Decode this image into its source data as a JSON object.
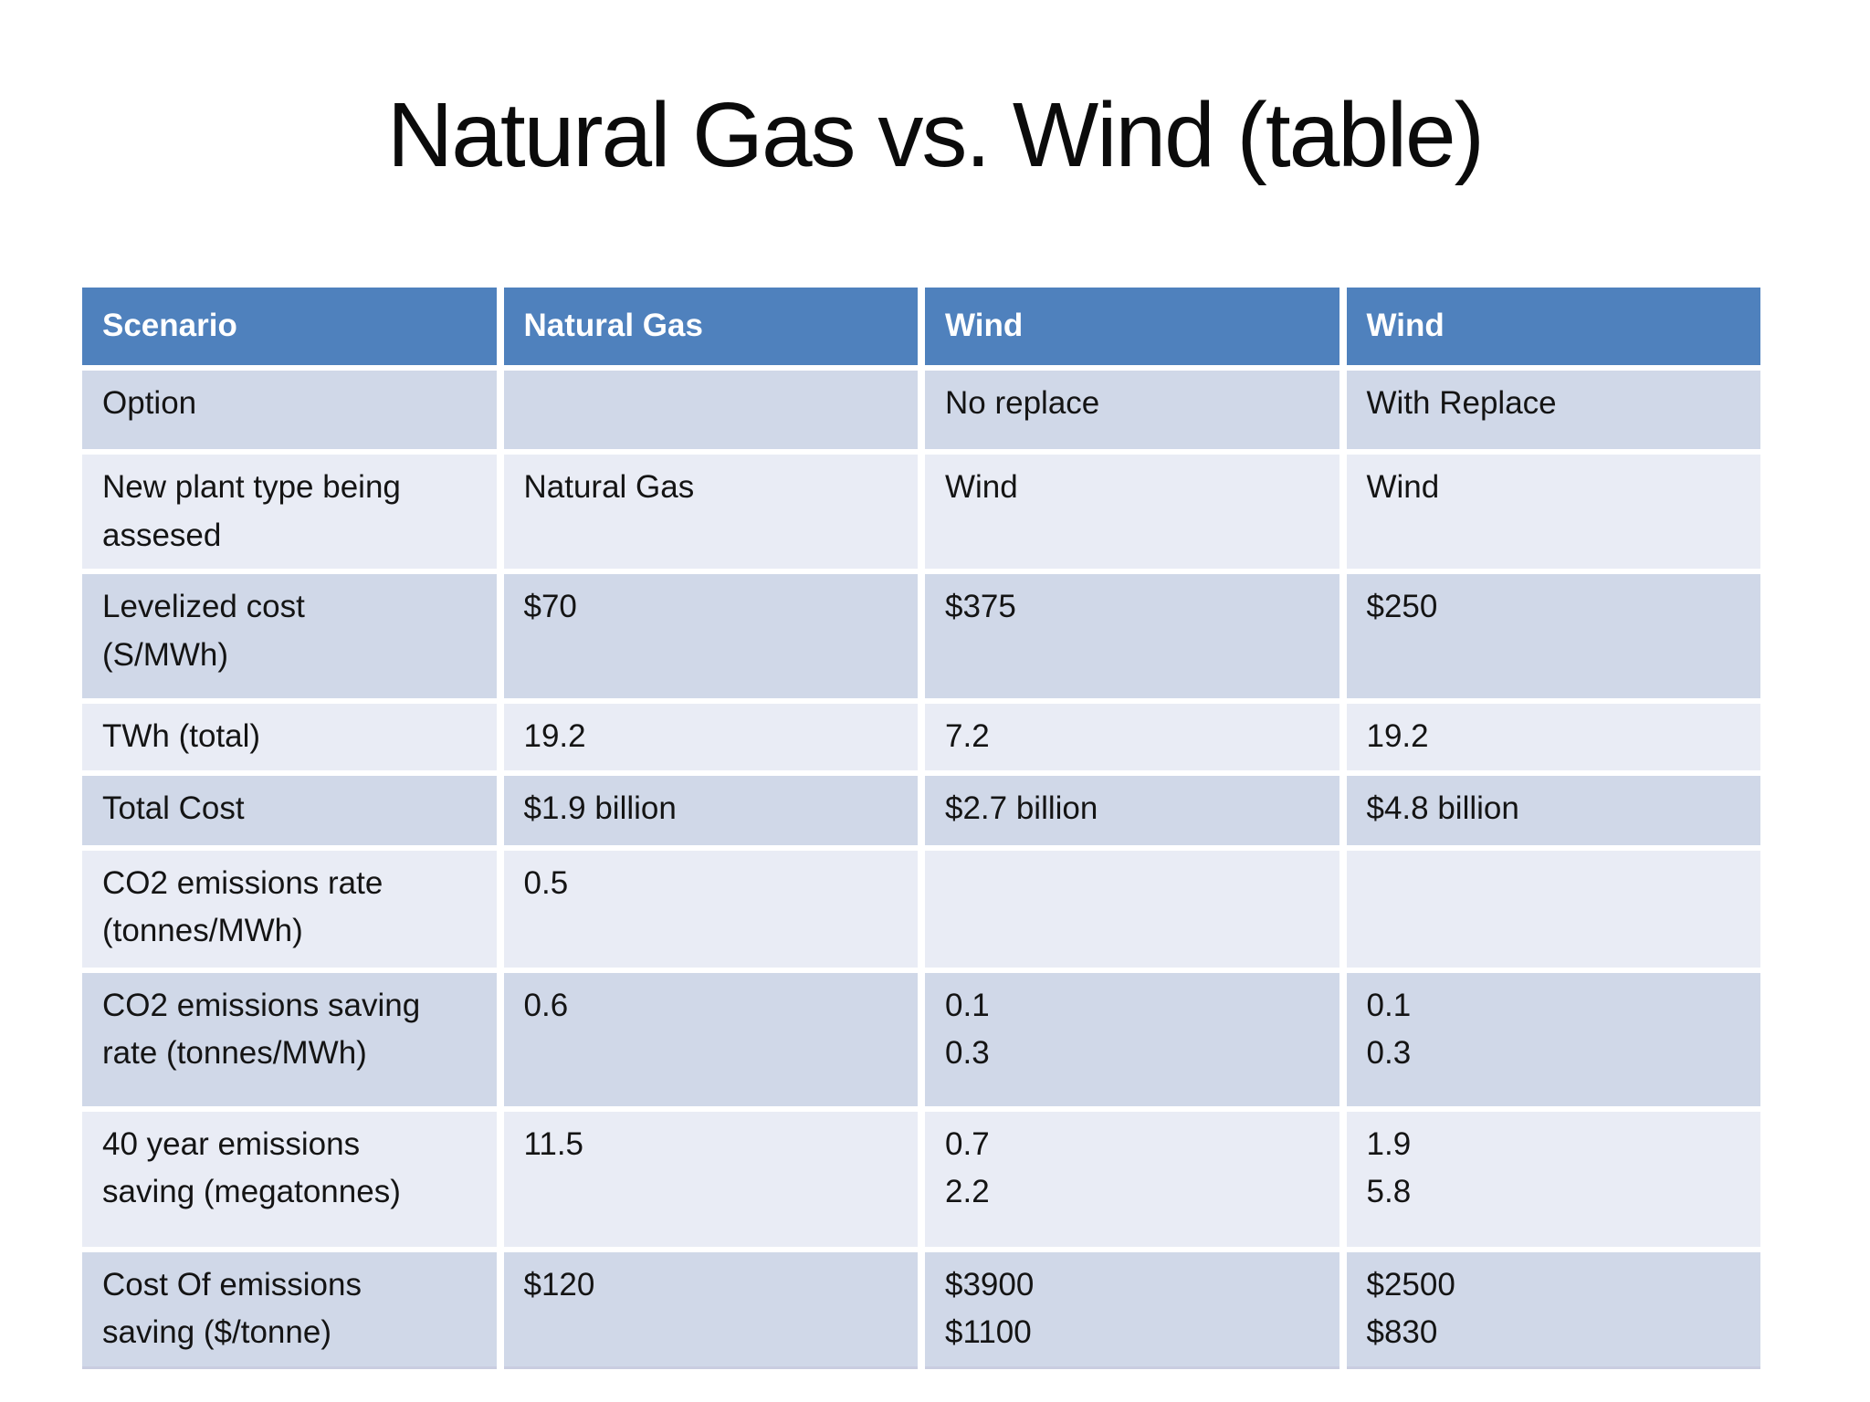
{
  "slide": {
    "title": "Natural Gas vs. Wind (table)"
  },
  "colors": {
    "header_bg": "#4f81bd",
    "header_text": "#ffffff",
    "band_dark": "#d0d8e8",
    "band_light": "#e9ecf5",
    "body_text": "#141414",
    "background": "#ffffff"
  },
  "chart_data": {
    "type": "table",
    "title": "Natural Gas vs. Wind (table)",
    "columns": [
      "Scenario",
      "Natural Gas",
      "Wind",
      "Wind"
    ],
    "rows": [
      [
        "Option",
        "",
        "No replace",
        "With Replace"
      ],
      [
        "New plant type being assesed",
        "Natural Gas",
        "Wind",
        "Wind"
      ],
      [
        "Levelized cost (S/MWh)",
        "$70",
        "$375",
        "$250"
      ],
      [
        "TWh (total)",
        "19.2",
        "7.2",
        "19.2"
      ],
      [
        "Total Cost",
        "$1.9 billion",
        "$2.7 billion",
        "$4.8 billion"
      ],
      [
        "CO2 emissions rate (tonnes/MWh)",
        "0.5",
        "",
        ""
      ],
      [
        "CO2 emissions saving rate (tonnes/MWh)",
        "0.6",
        "0.1 / 0.3",
        "0.1 / 0.3"
      ],
      [
        "40 year emissions saving (megatonnes)",
        "11.5",
        "0.7 / 2.2",
        "1.9 / 5.8"
      ],
      [
        "Cost Of emissions saving ($/tonne)",
        "$120",
        "$3900 / $1100",
        "$2500 / $830"
      ]
    ]
  },
  "table": {
    "header": [
      "Scenario",
      "Natural Gas",
      "Wind",
      "Wind"
    ],
    "rows": [
      {
        "cells": [
          "Option",
          "",
          "No replace",
          "With Replace"
        ]
      },
      {
        "cells": [
          "New plant type being\nassesed",
          "Natural Gas",
          "Wind",
          "Wind"
        ]
      },
      {
        "cells": [
          "Levelized cost\n(S/MWh)",
          "$70",
          "$375",
          "$250"
        ]
      },
      {
        "cells": [
          "TWh (total)",
          "19.2",
          "7.2",
          "19.2"
        ]
      },
      {
        "cells": [
          "Total Cost",
          "$1.9 billion",
          "$2.7 billion",
          "$4.8 billion"
        ]
      },
      {
        "cells": [
          "CO2 emissions rate\n(tonnes/MWh)",
          "0.5",
          "",
          ""
        ]
      },
      {
        "cells": [
          "CO2 emissions saving\nrate (tonnes/MWh)",
          "0.6",
          "0.1\n0.3",
          "0.1\n0.3"
        ]
      },
      {
        "cells": [
          "40 year emissions\nsaving (megatonnes)",
          "11.5",
          "0.7\n2.2",
          "1.9\n5.8"
        ]
      },
      {
        "cells": [
          "Cost Of emissions\nsaving ($/tonne)",
          "$120",
          "$3900\n$1100",
          "$2500\n$830"
        ]
      }
    ]
  }
}
